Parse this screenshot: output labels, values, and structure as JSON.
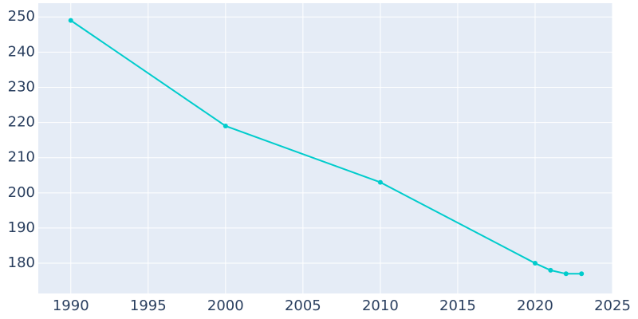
{
  "chart_data": {
    "type": "line",
    "x": [
      1990,
      2000,
      2010,
      2020,
      2021,
      2022,
      2023
    ],
    "series": [
      {
        "color": "#00cccc",
        "values": [
          249,
          219,
          203,
          180,
          178,
          177,
          177
        ]
      }
    ],
    "xlim": [
      1987.9,
      2025
    ],
    "xticks": [
      1990,
      1995,
      2000,
      2005,
      2010,
      2015,
      2020,
      2025
    ],
    "ylim": [
      171.4,
      253.9
    ],
    "yticks": [
      180,
      190,
      200,
      210,
      220,
      230,
      240,
      250
    ],
    "grid": true
  }
}
